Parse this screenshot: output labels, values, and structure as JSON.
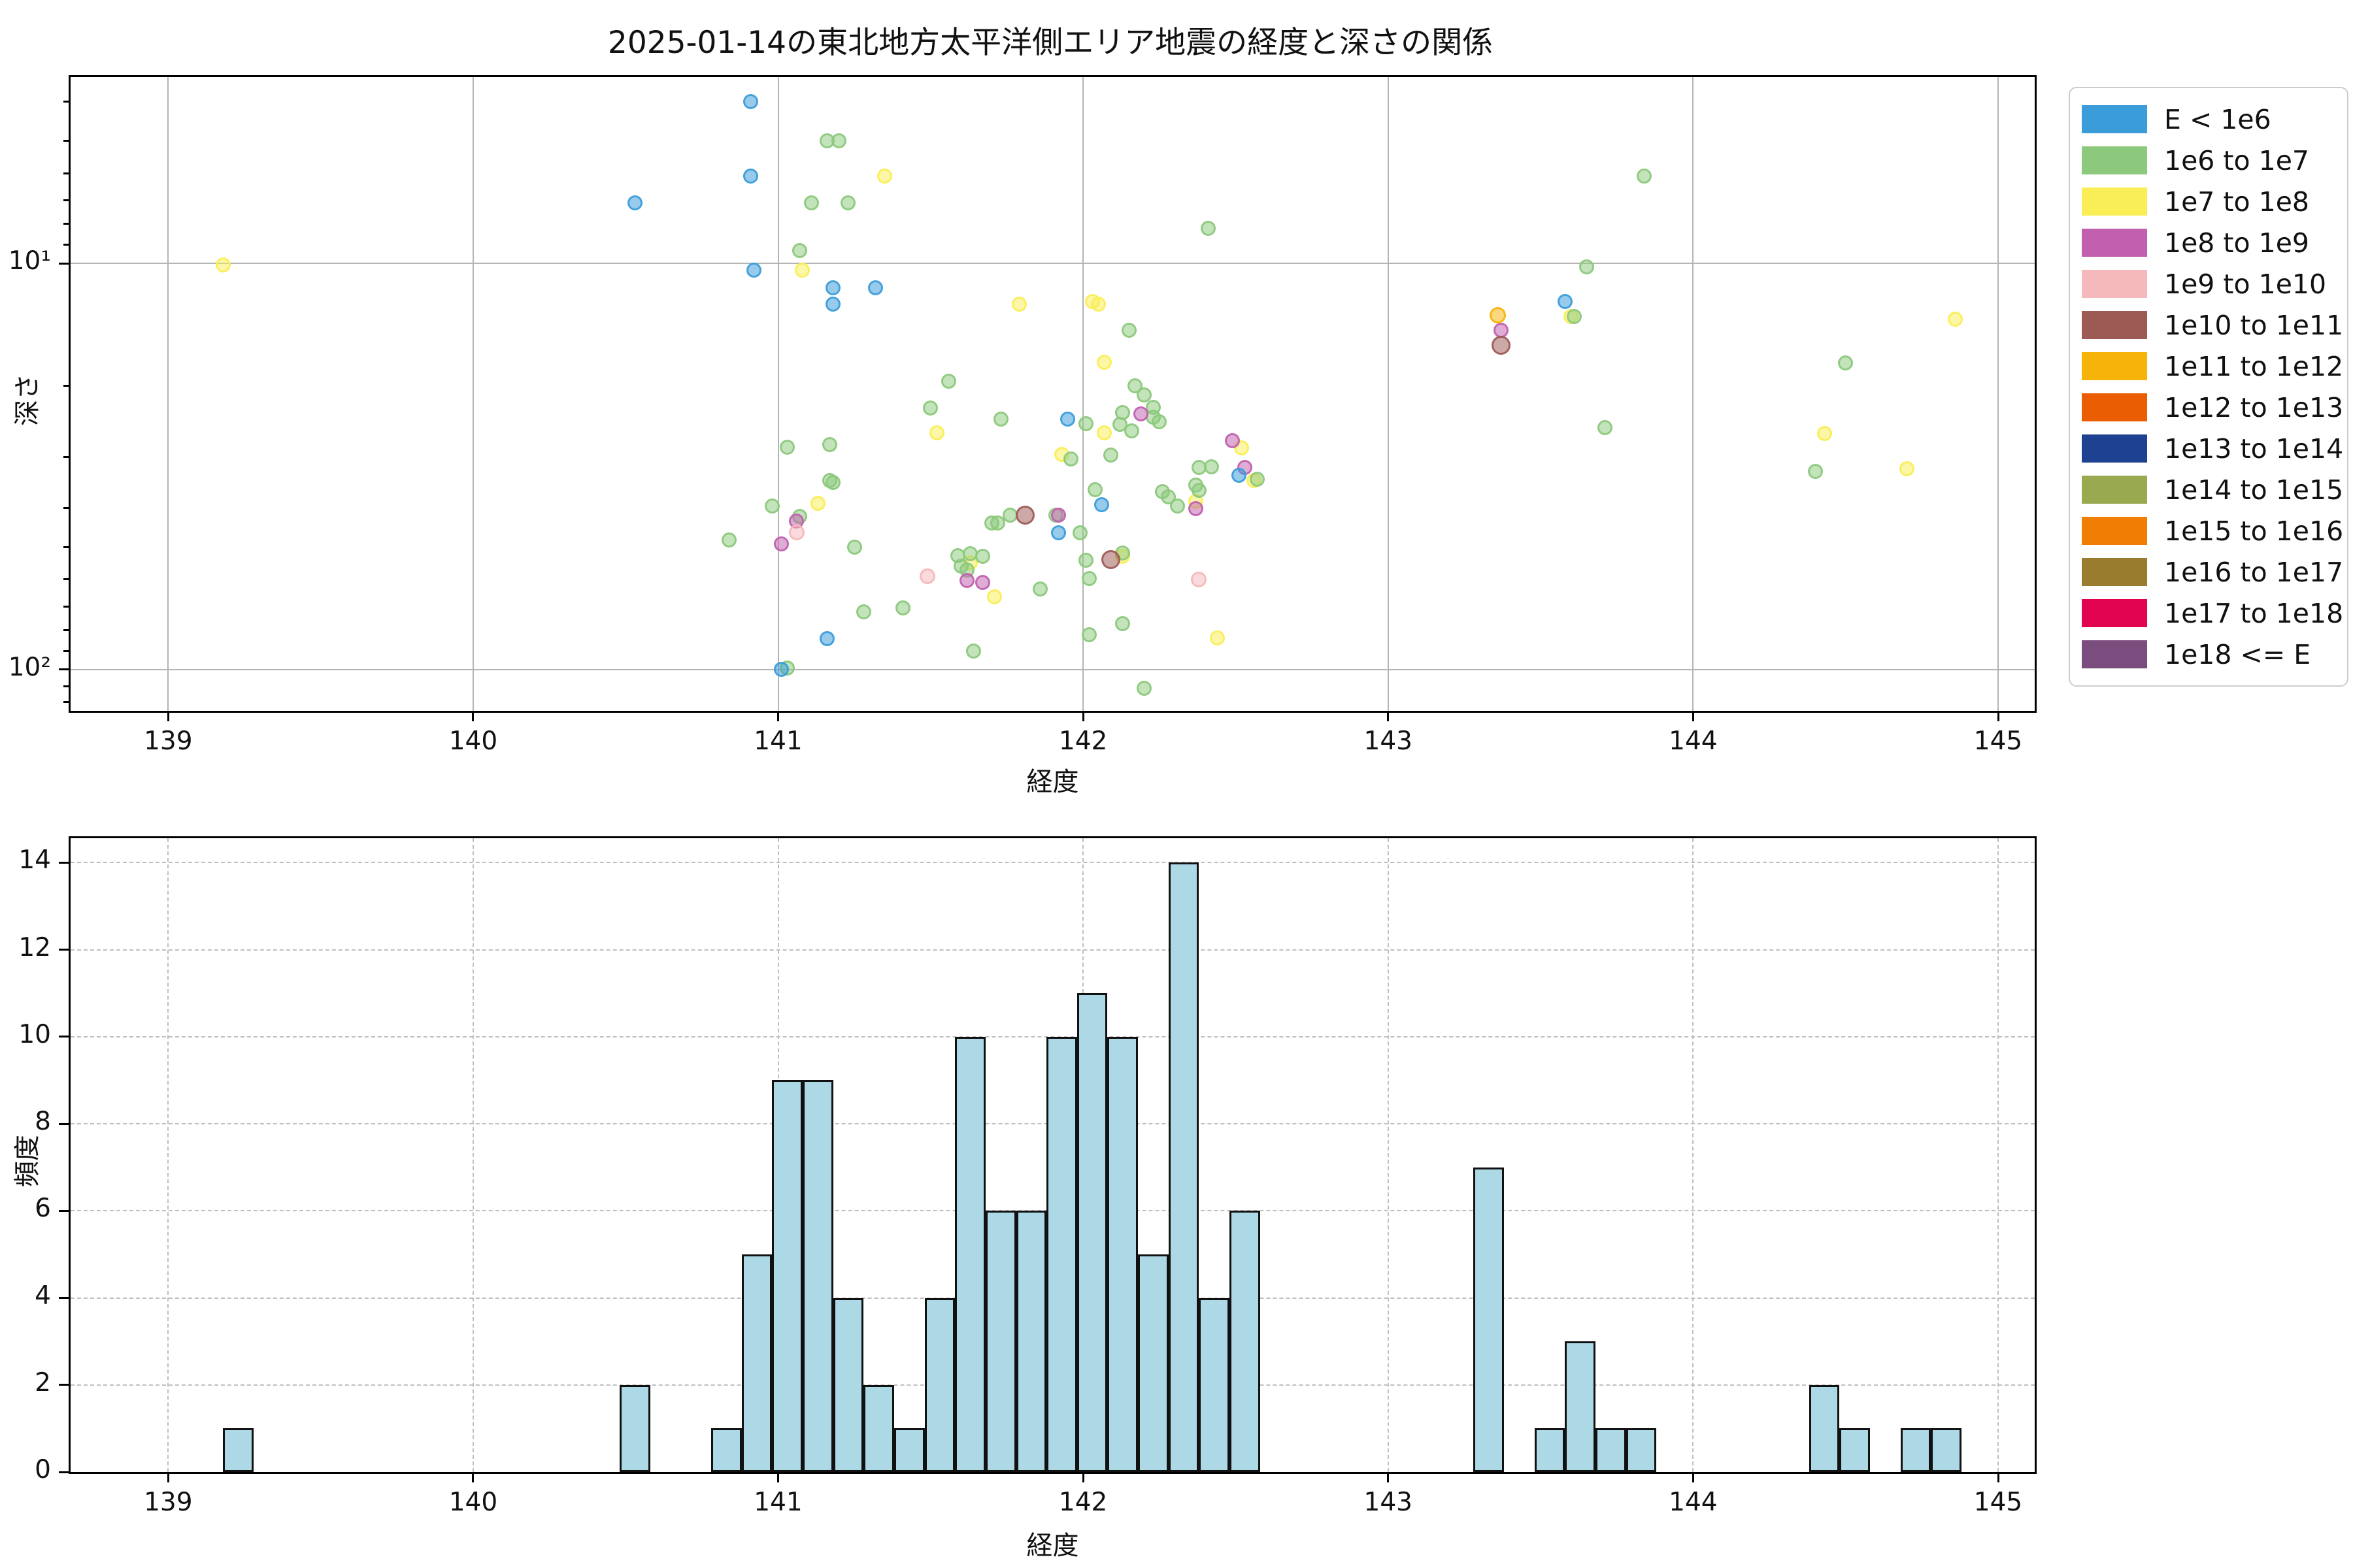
{
  "figure": {
    "title": "2025-01-14の東北地方太平洋側エリア地震の経度と深さの関係"
  },
  "chart_data": [
    {
      "type": "scatter",
      "title": "2025-01-14の東北地方太平洋側エリア地震の経度と深さの関係",
      "xlabel": "経度",
      "ylabel": "深さ",
      "yscale": "log-inverted",
      "xlim": [
        138.68,
        145.12
      ],
      "ylim_top": 3.48,
      "ylim_bottom": 126.3,
      "x_tick_values": [
        139,
        140,
        141,
        142,
        143,
        144,
        145
      ],
      "x_ticks": [
        "139",
        "140",
        "141",
        "142",
        "143",
        "144",
        "145"
      ],
      "y_major_ticks": [
        {
          "value": 10,
          "label": "10¹"
        },
        {
          "value": 100,
          "label": "10²"
        }
      ],
      "y_minor_ticks": [
        4,
        5,
        6,
        7,
        8,
        9,
        20,
        30,
        40,
        50,
        60,
        70,
        80,
        90,
        110,
        120
      ],
      "grid": "solid",
      "legend_position": "outside-right",
      "point_draw_order": [
        2,
        1,
        3,
        0,
        4,
        5,
        6,
        7,
        8,
        9,
        10,
        11,
        12,
        13
      ],
      "series": [
        {
          "name": "E < 1e6",
          "color": "#3a9cd9",
          "size": 23,
          "points": [
            [
              140.91,
              4.0
            ],
            [
              140.91,
              6.1
            ],
            [
              140.53,
              7.1
            ],
            [
              140.92,
              10.4
            ],
            [
              141.18,
              11.5
            ],
            [
              141.32,
              11.5
            ],
            [
              141.18,
              12.6
            ],
            [
              141.95,
              24.2
            ],
            [
              142.06,
              39.2
            ],
            [
              141.92,
              46.1
            ],
            [
              142.51,
              33.2
            ],
            [
              141.16,
              84
            ],
            [
              141.01,
              100
            ],
            [
              143.58,
              12.4
            ]
          ]
        },
        {
          "name": "1e6 to 1e7",
          "color": "#8cc97c",
          "size": 23,
          "points": [
            [
              141.16,
              5.0
            ],
            [
              141.2,
              5.0
            ],
            [
              141.11,
              7.1
            ],
            [
              141.23,
              7.1
            ],
            [
              141.07,
              9.3
            ],
            [
              141.56,
              19.5
            ],
            [
              141.5,
              22.7
            ],
            [
              141.73,
              24.2
            ],
            [
              142.41,
              8.2
            ],
            [
              143.65,
              10.2
            ],
            [
              143.61,
              13.5
            ],
            [
              142.15,
              14.6
            ],
            [
              142.17,
              20.0
            ],
            [
              142.2,
              21.1
            ],
            [
              142.23,
              22.6
            ],
            [
              142.23,
              23.9
            ],
            [
              142.13,
              23.3
            ],
            [
              142.12,
              24.9
            ],
            [
              142.01,
              24.8
            ],
            [
              142.16,
              25.8
            ],
            [
              142.25,
              24.5
            ],
            [
              143.84,
              6.1
            ],
            [
              144.5,
              17.6
            ],
            [
              143.71,
              25.4
            ],
            [
              141.17,
              27.9
            ],
            [
              141.03,
              28.3
            ],
            [
              142.09,
              29.6
            ],
            [
              141.96,
              30.3
            ],
            [
              140.98,
              39.6
            ],
            [
              141.07,
              42
            ],
            [
              140.84,
              48
            ],
            [
              141.25,
              49.9
            ],
            [
              141.7,
              43.6
            ],
            [
              141.72,
              43.6
            ],
            [
              141.76,
              41.6
            ],
            [
              141.91,
              41.6
            ],
            [
              141.99,
              46.1
            ],
            [
              142.01,
              53.7
            ],
            [
              142.13,
              51.6
            ],
            [
              141.59,
              52.4
            ],
            [
              141.63,
              51.9
            ],
            [
              141.67,
              52.6
            ],
            [
              141.6,
              55.6
            ],
            [
              141.62,
              56.8
            ],
            [
              141.86,
              63.2
            ],
            [
              142.02,
              59.7
            ],
            [
              141.41,
              70.5
            ],
            [
              141.28,
              72
            ],
            [
              141.64,
              90
            ],
            [
              142.02,
              81.9
            ],
            [
              141.03,
              99
            ],
            [
              142.13,
              77
            ],
            [
              142.2,
              111
            ],
            [
              142.38,
              31.8
            ],
            [
              142.42,
              31.7
            ],
            [
              142.57,
              34.0
            ],
            [
              142.37,
              35.1
            ],
            [
              142.38,
              36.2
            ],
            [
              142.26,
              36.4
            ],
            [
              142.28,
              37.5
            ],
            [
              142.31,
              39.5
            ],
            [
              142.04,
              36.0
            ],
            [
              141.17,
              34.2
            ],
            [
              141.18,
              34.6
            ],
            [
              144.4,
              32.5
            ]
          ]
        },
        {
          "name": "1e7 to 1e8",
          "color": "#f9ee56",
          "size": 23,
          "points": [
            [
              139.18,
              10.1
            ],
            [
              141.35,
              6.1
            ],
            [
              141.08,
              10.4
            ],
            [
              141.79,
              12.6
            ],
            [
              142.05,
              12.6
            ],
            [
              142.03,
              12.4
            ],
            [
              142.07,
              17.5
            ],
            [
              142.07,
              26.1
            ],
            [
              141.52,
              26.1
            ],
            [
              141.13,
              39.0
            ],
            [
              141.63,
              54.5
            ],
            [
              141.71,
              66.3
            ],
            [
              141.93,
              29.5
            ],
            [
              142.37,
              38.6
            ],
            [
              142.52,
              28.5
            ],
            [
              142.56,
              34.2
            ],
            [
              142.44,
              83.7
            ],
            [
              142.13,
              52.6
            ],
            [
              143.6,
              13.5
            ],
            [
              144.86,
              13.7
            ],
            [
              144.43,
              26.2
            ],
            [
              144.7,
              32
            ]
          ]
        },
        {
          "name": "1e8 to 1e9",
          "color": "#c060ae",
          "size": 23,
          "points": [
            [
              142.19,
              23.5
            ],
            [
              141.06,
              43
            ],
            [
              141.01,
              49
            ],
            [
              141.62,
              60.4
            ],
            [
              141.67,
              61.0
            ],
            [
              142.49,
              27.3
            ],
            [
              142.53,
              31.8
            ],
            [
              142.37,
              40.2
            ],
            [
              141.92,
              41.7
            ],
            [
              143.37,
              14.6
            ]
          ]
        },
        {
          "name": "1e9 to 1e10",
          "color": "#f5b8bb",
          "size": 24,
          "points": [
            [
              141.06,
              46
            ],
            [
              141.49,
              58.9
            ],
            [
              142.38,
              60
            ]
          ]
        },
        {
          "name": "1e10 to 1e11",
          "color": "#9d5a55",
          "size": 29,
          "points": [
            [
              141.81,
              41.7
            ],
            [
              142.09,
              53.5
            ],
            [
              143.37,
              15.9
            ]
          ]
        },
        {
          "name": "1e11 to 1e12",
          "color": "#f6b40a",
          "size": 25,
          "points": [
            [
              143.36,
              13.4
            ]
          ]
        },
        {
          "name": "1e12 to 1e13",
          "color": "#ea5d02",
          "size": 23,
          "points": []
        },
        {
          "name": "1e13 to 1e14",
          "color": "#1e4291",
          "size": 23,
          "points": []
        },
        {
          "name": "1e14 to 1e15",
          "color": "#98a94f",
          "size": 23,
          "points": []
        },
        {
          "name": "1e15 to 1e16",
          "color": "#f07d04",
          "size": 23,
          "points": []
        },
        {
          "name": "1e16 to 1e17",
          "color": "#9a7c2e",
          "size": 23,
          "points": []
        },
        {
          "name": "1e17 to 1e18",
          "color": "#e20450",
          "size": 23,
          "points": []
        },
        {
          "name": "1e18 <= E",
          "color": "#7b4d7f",
          "size": 23,
          "points": []
        }
      ]
    },
    {
      "type": "histogram",
      "xlabel": "経度",
      "ylabel": "頻度",
      "xlim": [
        138.68,
        145.12
      ],
      "ylim": [
        0,
        14.56
      ],
      "bin_width": 0.1,
      "bar_color": "#add8e6",
      "x_tick_values": [
        139,
        140,
        141,
        142,
        143,
        144,
        145
      ],
      "x_ticks": [
        "139",
        "140",
        "141",
        "142",
        "143",
        "144",
        "145"
      ],
      "y_tick_values": [
        0,
        2,
        4,
        6,
        8,
        10,
        12,
        14
      ],
      "y_ticks": [
        "0",
        "2",
        "4",
        "6",
        "8",
        "10",
        "12",
        "14"
      ],
      "grid": "dashed",
      "bars": [
        [
          139.18,
          1
        ],
        [
          140.48,
          2
        ],
        [
          140.78,
          1
        ],
        [
          140.88,
          5
        ],
        [
          140.98,
          9
        ],
        [
          141.08,
          9
        ],
        [
          141.18,
          4
        ],
        [
          141.28,
          2
        ],
        [
          141.38,
          1
        ],
        [
          141.48,
          4
        ],
        [
          141.58,
          10
        ],
        [
          141.68,
          6
        ],
        [
          141.78,
          6
        ],
        [
          141.88,
          10
        ],
        [
          141.98,
          11
        ],
        [
          142.08,
          10
        ],
        [
          142.18,
          5
        ],
        [
          142.28,
          14
        ],
        [
          142.38,
          4
        ],
        [
          142.48,
          6
        ],
        [
          143.28,
          7
        ],
        [
          143.48,
          1
        ],
        [
          143.58,
          3
        ],
        [
          143.68,
          1
        ],
        [
          143.78,
          1
        ],
        [
          144.38,
          2
        ],
        [
          144.48,
          1
        ],
        [
          144.68,
          1
        ],
        [
          144.78,
          1
        ]
      ]
    }
  ]
}
